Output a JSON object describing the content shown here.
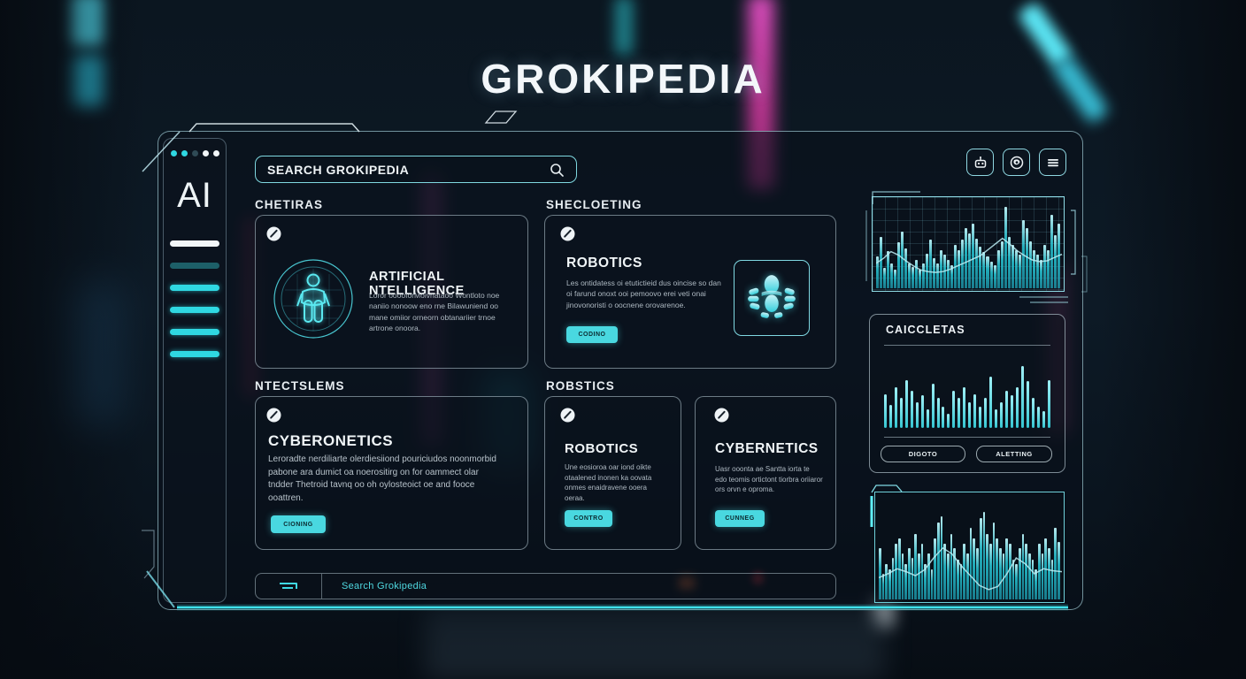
{
  "page_title": "GROKIPEDIA",
  "colors": {
    "accent": "#3fd8e2",
    "button_fill": "#49d8e0",
    "button_text": "#0c2a30",
    "line": "#bdeff4",
    "panel_border": "#9fdce6",
    "text_muted": "#aeb9c2"
  },
  "sidebar": {
    "logo": "AI",
    "dots": [
      "#2fd8e2",
      "#2fd8e2",
      "#2f4a55",
      "#f2f6f8",
      "#f2f6f8"
    ],
    "bars": [
      "#f2f6f8",
      "#1d5f68",
      "#2fd8e2",
      "#2fd8e2",
      "#2fd8e2",
      "#2fd8e2"
    ]
  },
  "search": {
    "value": "SEARCH GROKIPEDIA",
    "icon": "search-icon"
  },
  "toolbar": {
    "icons": [
      "robot-icon",
      "globe-icon",
      "menu-icon"
    ]
  },
  "sections": {
    "left_top": {
      "heading": "CHETIRAS",
      "card": {
        "title": "ARTIFICIAL NTELLIGENCE",
        "body": "Loror ooooforMoivnataoo Wontloto noe naniio nonoow eno rne Bilawuniend oo mane omiior orneorn obtanariier trnoe artrone onoora.",
        "icon": "humanoid-scan-icon"
      }
    },
    "right_top": {
      "heading": "SHECLOETING",
      "card": {
        "title": "ROBOTICS",
        "body": "Les ontidatess oi etutictieid dus oincise so dan oi farund onoxt ooi pemoovo erei veti onai jinovonoristi o oocnene orovarenoe.",
        "button": "CODINO",
        "icon": "mech-robot-icon"
      }
    },
    "left_bottom": {
      "heading": "NTECTSLEMS",
      "card": {
        "title": "CYBERONETICS",
        "body": "Leroradte nerdiliarte olerdiesiiond pouriciudos noonmorbid pabone ara dumict oa noerositirg on for oammect olar tndder Thetroid tavnq oo oh oylosteoict oe and fooce ooattren.",
        "button": "CIONING"
      }
    },
    "right_bottom": {
      "heading": "ROBSTICS",
      "cards": [
        {
          "title": "ROBOTICS",
          "body": "Une eosioroa oar iond oikte otaalened inonen ka oovata onmes enaidravene ooera oeraa.",
          "button": "CONTRO"
        },
        {
          "title": "CYBERNETICS",
          "body": "Uasr ooonta ae Santta iorta te edo teomis ortictont tiorbra oriiaror ors orvn e oproma.",
          "button": "CUNNEG"
        }
      ]
    }
  },
  "bottom_bar": {
    "label": "Search Grokipedia",
    "icon": "lines-corner-icon"
  },
  "right_panel": {
    "title": "CAICCLETAS",
    "buttons": [
      "DIGOTO",
      "ALETTING"
    ]
  },
  "chart_data": [
    {
      "type": "bar",
      "title": "",
      "values": [
        38,
        62,
        25,
        45,
        30,
        22,
        55,
        68,
        48,
        30,
        26,
        34,
        22,
        30,
        42,
        58,
        36,
        30,
        46,
        40,
        34,
        28,
        52,
        46,
        58,
        72,
        66,
        78,
        60,
        50,
        44,
        38,
        32,
        28,
        46,
        56,
        98,
        62,
        52,
        46,
        40,
        82,
        72,
        56,
        46,
        40,
        34,
        52,
        46,
        88,
        64,
        78
      ],
      "line": [
        30,
        36,
        44,
        40,
        33,
        27,
        22,
        20,
        19,
        20,
        23,
        27,
        31,
        35,
        39,
        46,
        53,
        60,
        53,
        45,
        39,
        34,
        32,
        33,
        37,
        41
      ],
      "color": "#45d8e2",
      "grid": true,
      "legend_position": "none"
    },
    {
      "type": "bar",
      "title": "CAICCLETAS",
      "values": [
        48,
        32,
        58,
        42,
        68,
        52,
        36,
        46,
        26,
        62,
        42,
        30,
        20,
        52,
        42,
        58,
        36,
        48,
        30,
        42,
        72,
        26,
        36,
        52,
        46,
        58,
        88,
        66,
        42,
        30,
        24,
        68
      ],
      "color": "#3fd0da",
      "grid": false,
      "legend_position": "none"
    },
    {
      "type": "bar",
      "title": "",
      "values": [
        52,
        26,
        36,
        30,
        42,
        56,
        62,
        46,
        36,
        52,
        42,
        66,
        46,
        56,
        36,
        46,
        30,
        62,
        78,
        84,
        56,
        46,
        66,
        52,
        40,
        36,
        56,
        46,
        72,
        62,
        52,
        82,
        88,
        66,
        56,
        78,
        62,
        52,
        46,
        62,
        56,
        40,
        36,
        52,
        66,
        56,
        46,
        40,
        30,
        56,
        46,
        62,
        52,
        40,
        72,
        58
      ],
      "line": [
        22,
        26,
        31,
        28,
        24,
        30,
        42,
        52,
        46,
        34,
        24,
        14,
        10,
        13,
        26,
        42,
        36,
        26,
        31,
        29,
        28
      ],
      "color": "#45d8e2",
      "grid": false,
      "legend_position": "none"
    }
  ]
}
